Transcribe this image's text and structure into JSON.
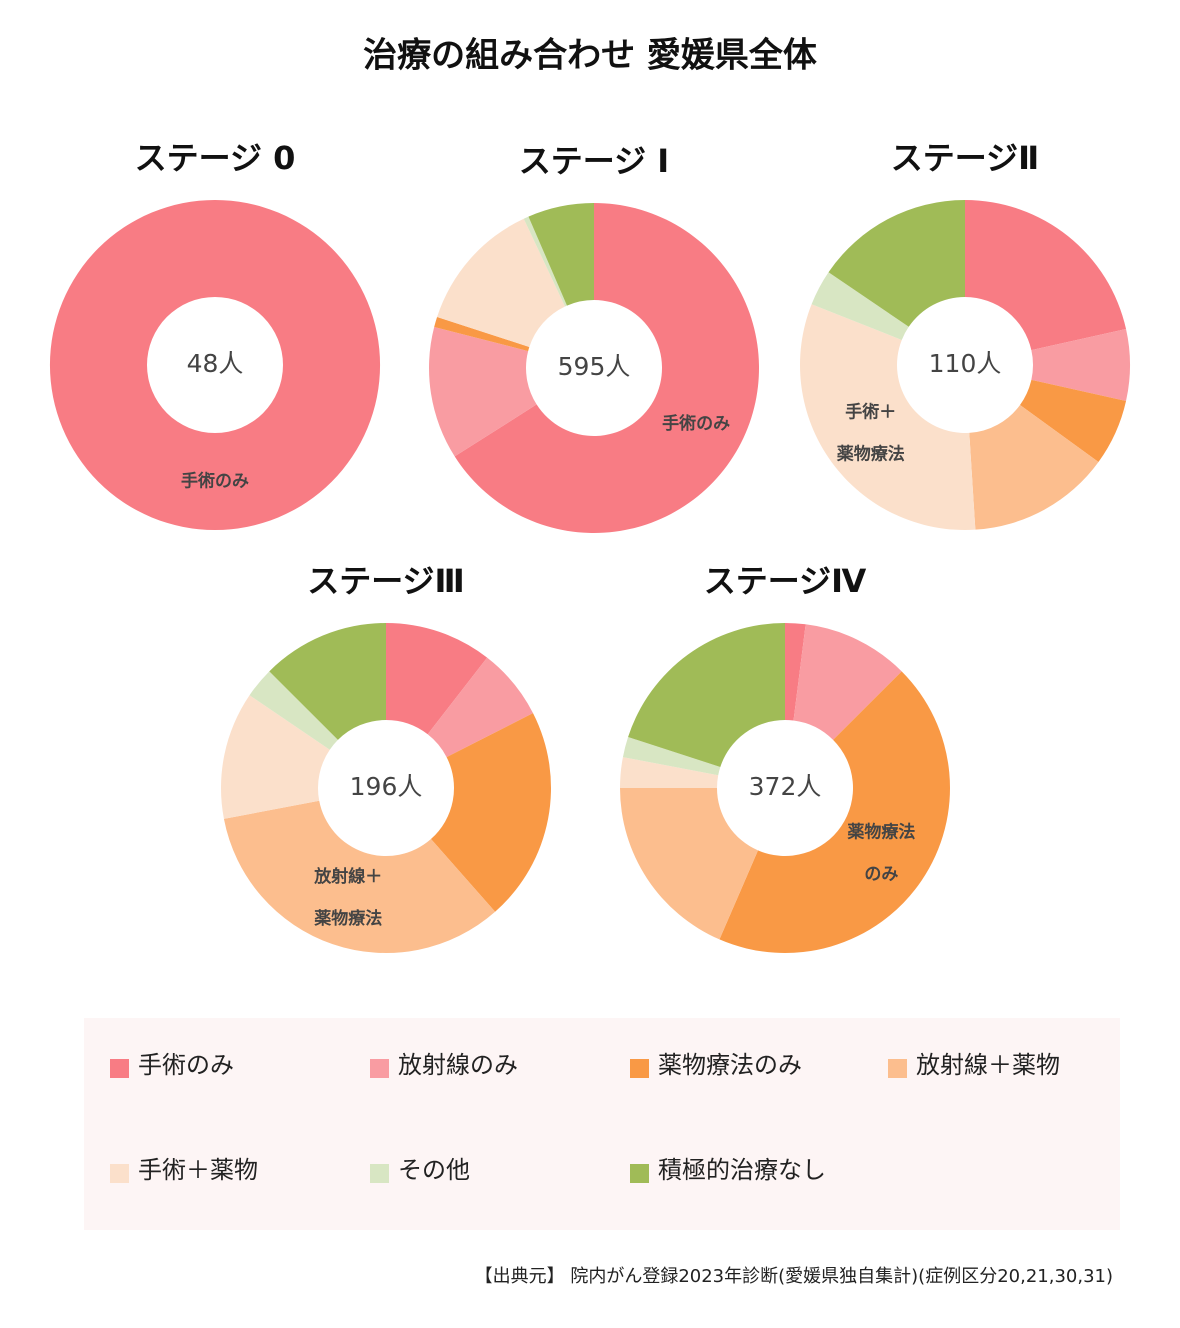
{
  "title": "治療の組み合わせ 愛媛県全体",
  "categories": [
    "手術のみ",
    "放射線のみ",
    "薬物療法のみ",
    "放射線＋薬物",
    "手術＋薬物",
    "その他",
    "積極的治療なし"
  ],
  "colors": [
    "#f87c84",
    "#f99ca2",
    "#f99945",
    "#fcbe8e",
    "#fbe0cb",
    "#d8e6c3",
    "#a0bb57"
  ],
  "chart_data": [
    {
      "type": "pie",
      "title": "ステージ 0",
      "center_label": "48人",
      "values": [
        100,
        0,
        0,
        0,
        0,
        0,
        0
      ],
      "slice_labels": [
        [
          "手術のみ"
        ],
        null,
        null,
        null,
        null,
        null,
        null
      ]
    },
    {
      "type": "pie",
      "title": "ステージ I",
      "center_label": "595人",
      "values": [
        66,
        13,
        1,
        0,
        13,
        0.5,
        6.5
      ],
      "slice_labels": [
        [
          "手術のみ"
        ],
        null,
        null,
        null,
        null,
        null,
        null
      ]
    },
    {
      "type": "pie",
      "title": "ステージⅡ",
      "center_label": "110人",
      "values": [
        21.5,
        7,
        6.5,
        14,
        32,
        3.5,
        15.5
      ],
      "slice_labels": [
        null,
        null,
        null,
        null,
        [
          "手術＋",
          "薬物療法"
        ],
        null,
        null
      ]
    },
    {
      "type": "pie",
      "title": "ステージⅢ",
      "center_label": "196人",
      "values": [
        10.5,
        7,
        21,
        33.5,
        12.5,
        3,
        12.5
      ],
      "slice_labels": [
        null,
        null,
        null,
        [
          "放射線＋",
          "薬物療法"
        ],
        null,
        null,
        null
      ]
    },
    {
      "type": "pie",
      "title": "ステージⅣ",
      "center_label": "372人",
      "values": [
        2,
        10.5,
        44,
        18.5,
        3,
        2,
        20
      ],
      "slice_labels": [
        null,
        null,
        [
          "薬物療法",
          "のみ"
        ],
        null,
        null,
        null,
        null
      ]
    }
  ],
  "source": "【出典元】 院内がん登録2023年診断(愛媛県独自集計)(症例区分20,21,30,31)"
}
